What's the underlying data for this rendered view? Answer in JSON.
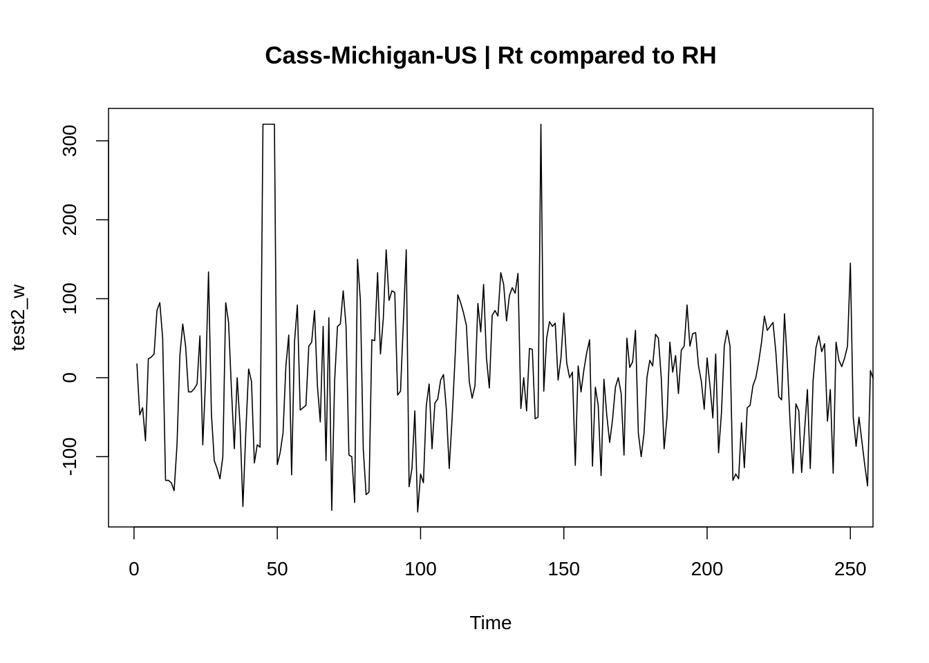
{
  "chart_data": {
    "type": "line",
    "title": "Cass-Michigan-US | Rt compared to RH",
    "xlabel": "Time",
    "ylabel": "test2_w",
    "xlim": [
      -8.9,
      257.9
    ],
    "ylim": [
      -189,
      341
    ],
    "x_ticks": [
      0,
      50,
      100,
      150,
      200,
      250
    ],
    "y_ticks": [
      -100,
      0,
      100,
      200,
      300
    ],
    "grid": false,
    "legend": "none",
    "line_color": "#000000",
    "series": [
      {
        "x_start": 1,
        "x_step": 1,
        "values": [
          18,
          -47,
          -38,
          -80,
          24,
          26,
          30,
          85,
          95,
          50,
          -130,
          -130,
          -133,
          -143,
          -85,
          28,
          68,
          40,
          -18,
          -18,
          -14,
          -8,
          53,
          -85,
          0,
          134,
          -45,
          -105,
          -115,
          -128,
          -100,
          95,
          70,
          -15,
          -90,
          0,
          -60,
          -163,
          -70,
          11,
          -5,
          -108,
          -85,
          -88,
          321,
          321,
          321,
          321,
          321,
          -110,
          -95,
          -70,
          15,
          54,
          -123,
          45,
          92,
          -41,
          -38,
          -35,
          40,
          45,
          85,
          -10,
          -56,
          65,
          -105,
          76,
          -168,
          -5,
          65,
          68,
          110,
          65,
          -98,
          -100,
          -158,
          150,
          98,
          -90,
          -148,
          -145,
          48,
          47,
          133,
          30,
          75,
          162,
          98,
          110,
          108,
          -22,
          -17,
          70,
          162,
          -138,
          -115,
          -42,
          -170,
          -122,
          -133,
          -35,
          -8,
          -90,
          -32,
          -27,
          -3,
          4,
          -40,
          -115,
          -52,
          22,
          105,
          95,
          82,
          66,
          -5,
          -26,
          -10,
          94,
          58,
          118,
          25,
          -13,
          79,
          85,
          78,
          133,
          118,
          72,
          104,
          114,
          107,
          132,
          -39,
          0,
          -42,
          37,
          36,
          -52,
          -50,
          321,
          -17,
          50,
          71,
          65,
          69,
          -3,
          25,
          82,
          19,
          0,
          7,
          -111,
          15,
          -18,
          10,
          32,
          48,
          -112,
          -12,
          -35,
          -124,
          -2,
          -48,
          -82,
          -53,
          -12,
          0,
          -20,
          -98,
          50,
          13,
          20,
          60,
          -70,
          -100,
          -70,
          0,
          22,
          15,
          55,
          50,
          0,
          -90,
          -50,
          45,
          7,
          28,
          -20,
          35,
          40,
          92,
          40,
          56,
          57,
          15,
          -5,
          -40,
          25,
          -10,
          -51,
          30,
          -95,
          -45,
          40,
          60,
          40,
          -130,
          -122,
          -128,
          -57,
          -114,
          -38,
          -35,
          -10,
          0,
          20,
          45,
          78,
          60,
          65,
          70,
          32,
          -24,
          -28,
          81,
          19,
          -60,
          -121,
          -33,
          -42,
          -120,
          -67,
          -15,
          -115,
          -3,
          38,
          53,
          33,
          43,
          -55,
          -15,
          -121,
          45,
          22,
          14,
          25,
          40,
          145,
          -50,
          -87,
          -50,
          -80,
          -110,
          -137,
          9,
          -2
        ]
      }
    ]
  }
}
